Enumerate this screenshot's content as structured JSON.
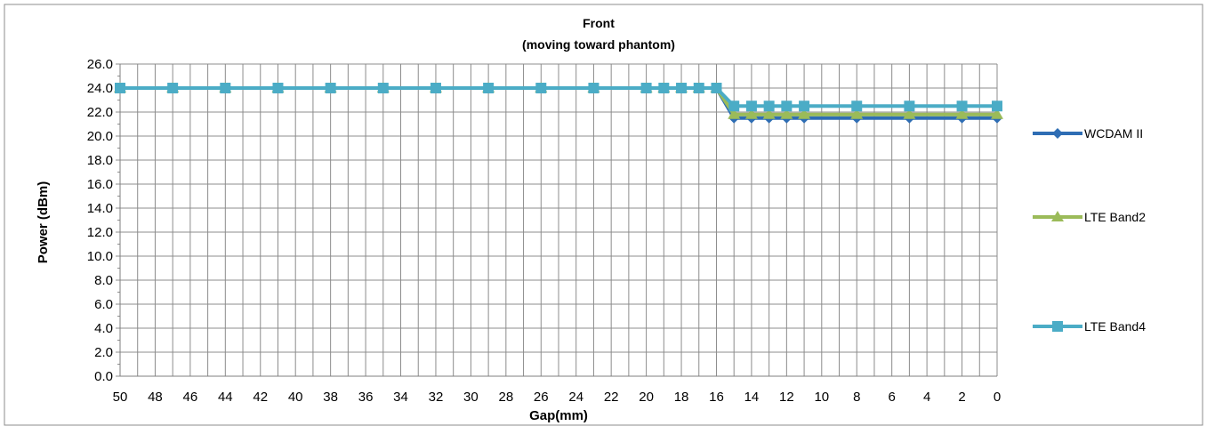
{
  "chart_data": {
    "type": "line",
    "title_line1": "Front",
    "title_line2": "(moving toward phantom)",
    "xlabel": "Gap(mm)",
    "ylabel": "Power (dBm)",
    "x": [
      50,
      47,
      44,
      41,
      38,
      35,
      32,
      29,
      26,
      23,
      20,
      19,
      18,
      17,
      16,
      15,
      14,
      13,
      12,
      11,
      8,
      5,
      2,
      0
    ],
    "xlim": [
      50,
      0
    ],
    "x_reversed": true,
    "x_ticks": [
      "50",
      "48",
      "46",
      "44",
      "42",
      "40",
      "38",
      "36",
      "34",
      "32",
      "30",
      "28",
      "26",
      "24",
      "22",
      "20",
      "18",
      "16",
      "14",
      "12",
      "10",
      "8",
      "6",
      "4",
      "2",
      "0"
    ],
    "ylim": [
      0,
      26
    ],
    "y_ticks": [
      "0.0",
      "2.0",
      "4.0",
      "6.0",
      "8.0",
      "10.0",
      "12.0",
      "14.0",
      "16.0",
      "18.0",
      "20.0",
      "22.0",
      "24.0",
      "26.0"
    ],
    "grid": true,
    "legend_position": "right",
    "series": [
      {
        "name": "WCDAM II",
        "color": "#2e6db4",
        "marker": "diamond",
        "values": [
          24,
          24,
          24,
          24,
          24,
          24,
          24,
          24,
          24,
          24,
          24,
          24,
          24,
          24,
          24,
          21.5,
          21.5,
          21.5,
          21.5,
          21.5,
          21.5,
          21.5,
          21.5,
          21.5
        ]
      },
      {
        "name": "LTE Band2",
        "color": "#9bbb59",
        "marker": "triangle",
        "values": [
          24,
          24,
          24,
          24,
          24,
          24,
          24,
          24,
          24,
          24,
          24,
          24,
          24,
          24,
          24,
          21.8,
          21.8,
          21.8,
          21.8,
          21.8,
          21.8,
          21.8,
          21.8,
          21.8
        ]
      },
      {
        "name": "LTE Band4",
        "color": "#4bacc6",
        "marker": "square",
        "values": [
          24,
          24,
          24,
          24,
          24,
          24,
          24,
          24,
          24,
          24,
          24,
          24,
          24,
          24,
          24,
          22.5,
          22.5,
          22.5,
          22.5,
          22.5,
          22.5,
          22.5,
          22.5,
          22.5
        ]
      }
    ]
  }
}
